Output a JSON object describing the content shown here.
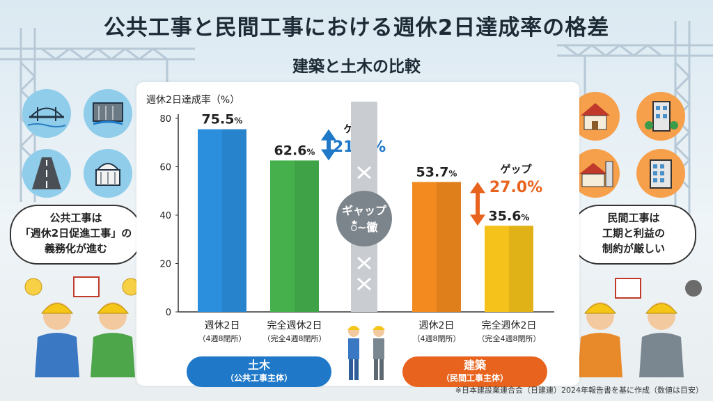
{
  "header": {
    "title": "公共工事と民間工事における週休2日達成率の格差",
    "subtitle": "建築と土木の比較"
  },
  "chart_data": {
    "type": "bar",
    "ylabel": "週休2日達成率（%）",
    "ylim": [
      0,
      80
    ],
    "yticks": [
      "0",
      "20",
      "40",
      "60",
      "80"
    ],
    "groups": [
      {
        "name": "土木",
        "sub": "（公共工事主体）",
        "color": "#1f78c8",
        "bars": [
          {
            "line1": "週休2日",
            "line2": "（4週8閉所）",
            "value": 75.5,
            "label": "75.5",
            "unit": "%",
            "color": "#2b8fde"
          },
          {
            "line1": "完全週休2日",
            "line2": "（完全4週8閉所）",
            "value": 62.6,
            "label": "62.6",
            "unit": "%",
            "color": "#45b04c"
          }
        ],
        "gap_label": "ゲップ",
        "gap_value": "21.8%",
        "gap_color": "#1f78c8"
      },
      {
        "name": "建築",
        "sub": "（民間工事主体）",
        "color": "#e8641e",
        "bars": [
          {
            "line1": "週休2日",
            "line2": "（4週8閉所）",
            "value": 53.7,
            "label": "53.7",
            "unit": "%",
            "color": "#f28a1f"
          },
          {
            "line1": "完全週休2日",
            "line2": "（完全4週8閉所）",
            "value": 35.6,
            "label": "35.6",
            "unit": "%",
            "color": "#f5c21b"
          }
        ],
        "gap_label": "ゲップ",
        "gap_value": "27.0%",
        "gap_color": "#e8641e"
      }
    ],
    "center_label_line1": "ギャップ",
    "center_label_line2": "᭰~黴"
  },
  "left_bubble": {
    "line1": "公共工事は",
    "line2": "「週休2日促進工事」の",
    "line3": "義務化が進む"
  },
  "right_bubble": {
    "line1": "民間工事は",
    "line2": "工期と利益の",
    "line3": "制約が厳しい"
  },
  "footnote": "※日本建設業連合会（日建連）2024年報告書を基に作成（数値は目安）",
  "colors": {
    "civil": "#1f78c8",
    "building": "#e8641e",
    "icon_left": "#7cc3e8",
    "icon_right": "#f6a04b"
  }
}
